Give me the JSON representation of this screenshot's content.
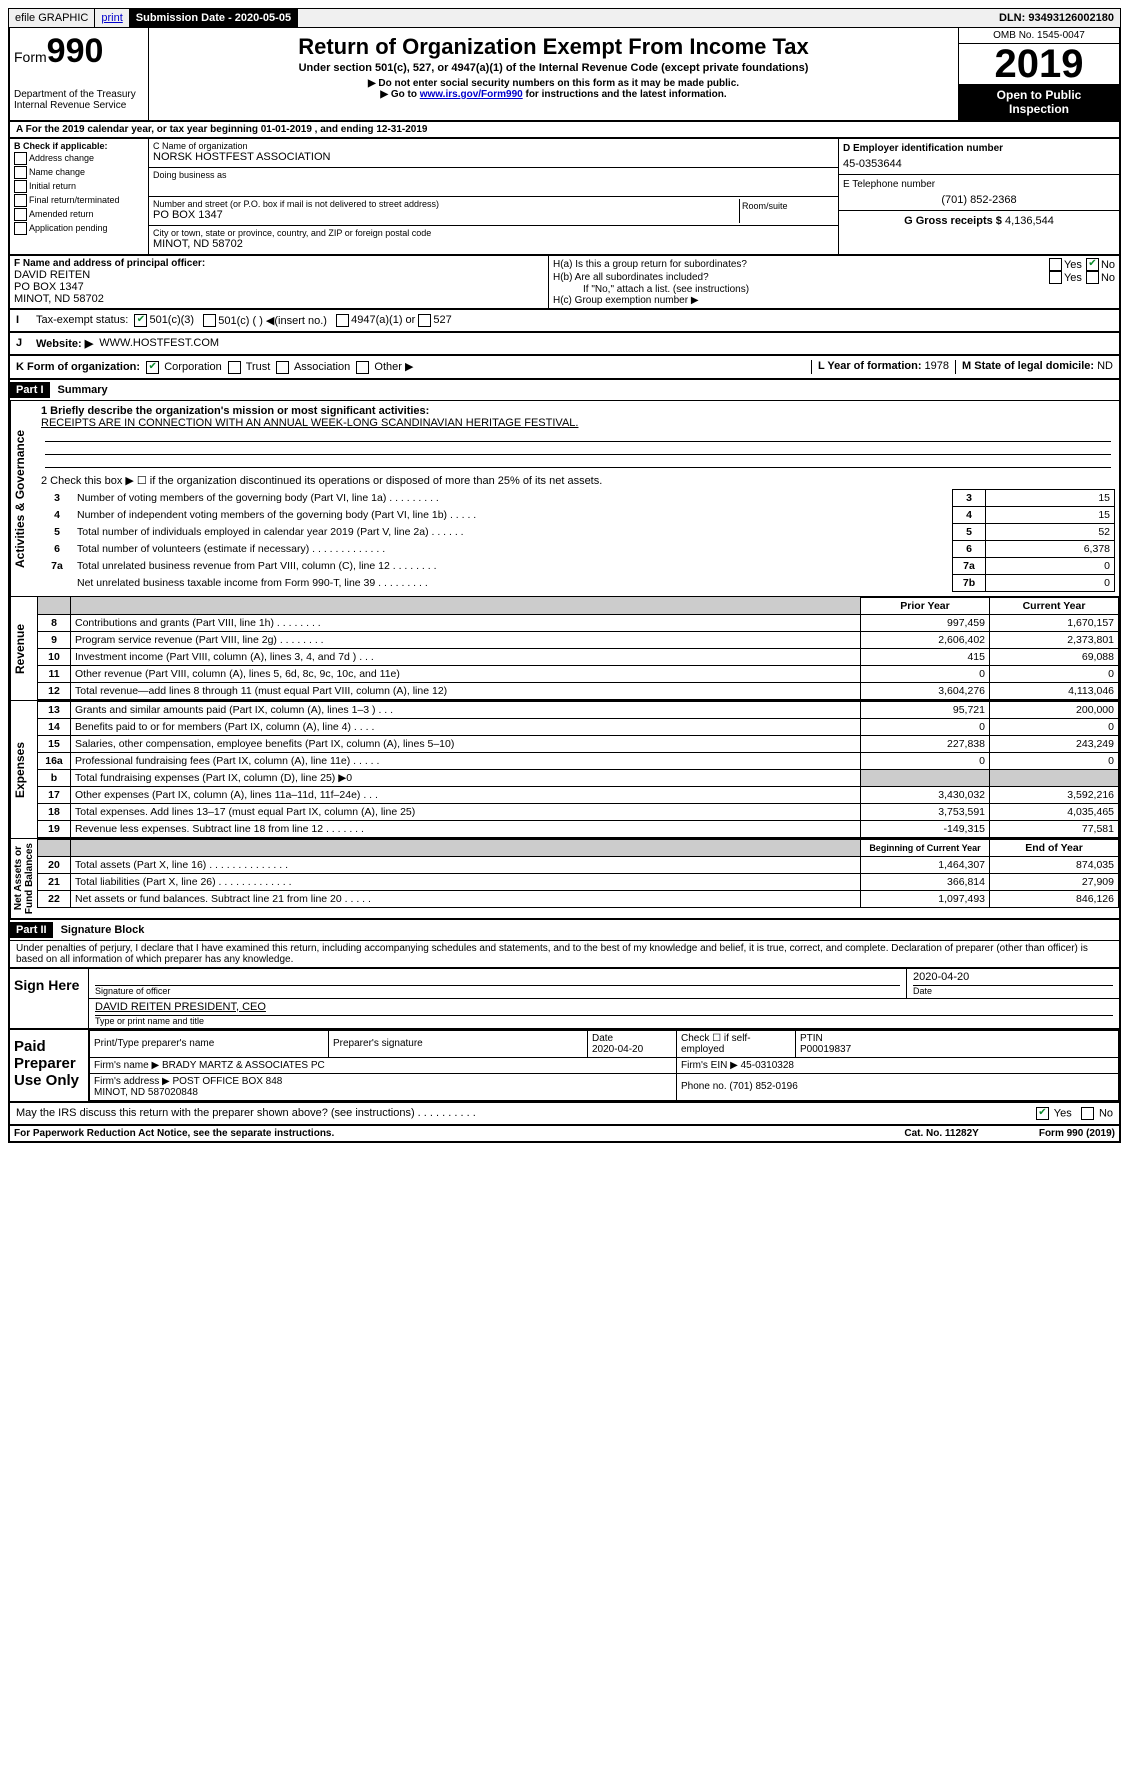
{
  "topbar": {
    "efile": "efile GRAPHIC",
    "print": "print",
    "subdate_label": "Submission Date - ",
    "subdate": "2020-05-05",
    "dln_label": "DLN: ",
    "dln": "93493126002180"
  },
  "header": {
    "form_prefix": "Form",
    "form_num": "990",
    "dept": "Department of the Treasury\nInternal Revenue Service",
    "title": "Return of Organization Exempt From Income Tax",
    "subtitle": "Under section 501(c), 527, or 4947(a)(1) of the Internal Revenue Code (except private foundations)",
    "note1": "▶ Do not enter social security numbers on this form as it may be made public.",
    "note2_pre": "▶ Go to ",
    "note2_link": "www.irs.gov/Form990",
    "note2_post": " for instructions and the latest information.",
    "omb": "OMB No. 1545-0047",
    "year": "2019",
    "open": "Open to Public\nInspection"
  },
  "period": "A For the 2019 calendar year, or tax year beginning 01-01-2019    , and ending 12-31-2019",
  "blockB": {
    "label": "B Check if applicable:",
    "items": [
      "Address change",
      "Name change",
      "Initial return",
      "Final return/terminated",
      "Amended return",
      "Application pending"
    ]
  },
  "blockC": {
    "name_label": "C Name of organization",
    "name": "NORSK HOSTFEST ASSOCIATION",
    "dba_label": "Doing business as",
    "dba": "",
    "addr_label": "Number and street (or P.O. box if mail is not delivered to street address)",
    "suite_label": "Room/suite",
    "addr": "PO BOX 1347",
    "city_label": "City or town, state or province, country, and ZIP or foreign postal code",
    "city": "MINOT, ND  58702"
  },
  "blockD": {
    "label": "D Employer identification number",
    "value": "45-0353644"
  },
  "blockE": {
    "label": "E Telephone number",
    "value": "(701) 852-2368"
  },
  "blockG": {
    "label": "G Gross receipts $ ",
    "value": "4,136,544"
  },
  "blockF": {
    "label": "F  Name and address of principal officer:",
    "name": "DAVID REITEN",
    "addr1": "PO BOX 1347",
    "addr2": "MINOT, ND  58702"
  },
  "blockH": {
    "a": "H(a)  Is this a group return for subordinates?",
    "b": "H(b)  Are all subordinates included?",
    "b_note": "If \"No,\" attach a list. (see instructions)",
    "c": "H(c)  Group exemption number ▶",
    "yes": "Yes",
    "no": "No"
  },
  "taxexempt": {
    "label": "Tax-exempt status:",
    "opt1": "501(c)(3)",
    "opt2": "501(c) (   ) ◀(insert no.)",
    "opt3": "4947(a)(1) or",
    "opt4": "527"
  },
  "website": {
    "label": "Website: ▶",
    "value": "WWW.HOSTFEST.COM"
  },
  "blockK": {
    "label": "K Form of organization:",
    "corp": "Corporation",
    "trust": "Trust",
    "assoc": "Association",
    "other": "Other ▶"
  },
  "blockL": {
    "label": "L Year of formation: ",
    "value": "1978"
  },
  "blockM": {
    "label": "M State of legal domicile: ",
    "value": "ND"
  },
  "part1": {
    "header": "Part I",
    "title": "Summary",
    "line1_label": "1  Briefly describe the organization's mission or most significant activities:",
    "line1_value": "RECEIPTS ARE IN CONNECTION WITH AN ANNUAL WEEK-LONG SCANDINAVIAN HERITAGE FESTIVAL.",
    "line2": "2   Check this box ▶ ☐  if the organization discontinued its operations or disposed of more than 25% of its net assets.",
    "rows_governance": [
      {
        "n": "3",
        "desc": "Number of voting members of the governing body (Part VI, line 1a)   .    .    .    .    .    .    .    .    .",
        "box": "3",
        "val": "15"
      },
      {
        "n": "4",
        "desc": "Number of independent voting members of the governing body (Part VI, line 1b)   .    .    .    .    .",
        "box": "4",
        "val": "15"
      },
      {
        "n": "5",
        "desc": "Total number of individuals employed in calendar year 2019 (Part V, line 2a)   .    .    .    .    .    .",
        "box": "5",
        "val": "52"
      },
      {
        "n": "6",
        "desc": "Total number of volunteers (estimate if necessary)   .    .    .    .    .    .    .    .    .    .    .    .    .",
        "box": "6",
        "val": "6,378"
      },
      {
        "n": "7a",
        "desc": "Total unrelated business revenue from Part VIII, column (C), line 12   .    .    .    .    .    .    .    .",
        "box": "7a",
        "val": "0"
      },
      {
        "n": "",
        "desc": "Net unrelated business taxable income from Form 990-T, line 39   .    .    .    .    .    .    .    .    .",
        "box": "7b",
        "val": "0"
      }
    ],
    "col_prior": "Prior Year",
    "col_current": "Current Year",
    "rows_revenue": [
      {
        "n": "8",
        "desc": "Contributions and grants (Part VIII, line 1h)   .    .    .    .    .    .    .    .",
        "prior": "997,459",
        "curr": "1,670,157"
      },
      {
        "n": "9",
        "desc": "Program service revenue (Part VIII, line 2g)   .    .    .    .    .    .    .    .",
        "prior": "2,606,402",
        "curr": "2,373,801"
      },
      {
        "n": "10",
        "desc": "Investment income (Part VIII, column (A), lines 3, 4, and 7d )   .    .    .",
        "prior": "415",
        "curr": "69,088"
      },
      {
        "n": "11",
        "desc": "Other revenue (Part VIII, column (A), lines 5, 6d, 8c, 9c, 10c, and 11e)",
        "prior": "0",
        "curr": "0"
      },
      {
        "n": "12",
        "desc": "Total revenue—add lines 8 through 11 (must equal Part VIII, column (A), line 12)",
        "prior": "3,604,276",
        "curr": "4,113,046"
      }
    ],
    "rows_expenses": [
      {
        "n": "13",
        "desc": "Grants and similar amounts paid (Part IX, column (A), lines 1–3 )   .    .    .",
        "prior": "95,721",
        "curr": "200,000"
      },
      {
        "n": "14",
        "desc": "Benefits paid to or for members (Part IX, column (A), line 4)   .    .    .    .",
        "prior": "0",
        "curr": "0"
      },
      {
        "n": "15",
        "desc": "Salaries, other compensation, employee benefits (Part IX, column (A), lines 5–10)",
        "prior": "227,838",
        "curr": "243,249"
      },
      {
        "n": "16a",
        "desc": "Professional fundraising fees (Part IX, column (A), line 11e)   .    .    .    .    .",
        "prior": "0",
        "curr": "0"
      },
      {
        "n": "b",
        "desc": "Total fundraising expenses (Part IX, column (D), line 25) ▶0",
        "prior": "grey",
        "curr": "grey"
      },
      {
        "n": "17",
        "desc": "Other expenses (Part IX, column (A), lines 11a–11d, 11f–24e)   .    .    .",
        "prior": "3,430,032",
        "curr": "3,592,216"
      },
      {
        "n": "18",
        "desc": "Total expenses. Add lines 13–17 (must equal Part IX, column (A), line 25)",
        "prior": "3,753,591",
        "curr": "4,035,465"
      },
      {
        "n": "19",
        "desc": "Revenue less expenses. Subtract line 18 from line 12   .    .    .    .    .    .    .",
        "prior": "-149,315",
        "curr": "77,581"
      }
    ],
    "col_begin": "Beginning of Current Year",
    "col_end": "End of Year",
    "rows_net": [
      {
        "n": "20",
        "desc": "Total assets (Part X, line 16)   .    .    .    .    .    .    .    .    .    .    .    .    .    .",
        "prior": "1,464,307",
        "curr": "874,035"
      },
      {
        "n": "21",
        "desc": "Total liabilities (Part X, line 26)   .    .    .    .    .    .    .    .    .    .    .    .    .",
        "prior": "366,814",
        "curr": "27,909"
      },
      {
        "n": "22",
        "desc": "Net assets or fund balances. Subtract line 21 from line 20   .    .    .    .    .",
        "prior": "1,097,493",
        "curr": "846,126"
      }
    ],
    "vlabels": {
      "gov": "Activities & Governance",
      "rev": "Revenue",
      "exp": "Expenses",
      "net": "Net Assets or\nFund Balances"
    }
  },
  "part2": {
    "header": "Part II",
    "title": "Signature Block",
    "declaration": "Under penalties of perjury, I declare that I have examined this return, including accompanying schedules and statements, and to the best of my knowledge and belief, it is true, correct, and complete. Declaration of preparer (other than officer) is based on all information of which preparer has any knowledge.",
    "sign_here": "Sign Here",
    "sig_officer": "Signature of officer",
    "sig_date": "2020-04-20",
    "date_label": "Date",
    "officer_name": "DAVID REITEN  PRESIDENT, CEO",
    "type_name": "Type or print name and title"
  },
  "paid": {
    "label": "Paid Preparer Use Only",
    "col_preparer": "Print/Type preparer's name",
    "col_sig": "Preparer's signature",
    "col_date": "Date",
    "date": "2020-04-20",
    "check_label": "Check ☐ if self-employed",
    "ptin_label": "PTIN",
    "ptin": "P00019837",
    "firm_name_label": "Firm's name     ▶",
    "firm_name": "BRADY MARTZ & ASSOCIATES PC",
    "firm_ein_label": "Firm's EIN ▶",
    "firm_ein": "45-0310328",
    "firm_addr_label": "Firm's address ▶",
    "firm_addr": "POST OFFICE BOX 848\nMINOT, ND  587020848",
    "phone_label": "Phone no. ",
    "phone": "(701) 852-0196"
  },
  "discuss": {
    "text": "May the IRS discuss this return with the preparer shown above? (see instructions)    .    .    .    .    .    .    .    .    .    .",
    "yes": "Yes",
    "no": "No"
  },
  "footer": {
    "left": "For Paperwork Reduction Act Notice, see the separate instructions.",
    "mid": "Cat. No. 11282Y",
    "right": "Form 990 (2019)"
  }
}
